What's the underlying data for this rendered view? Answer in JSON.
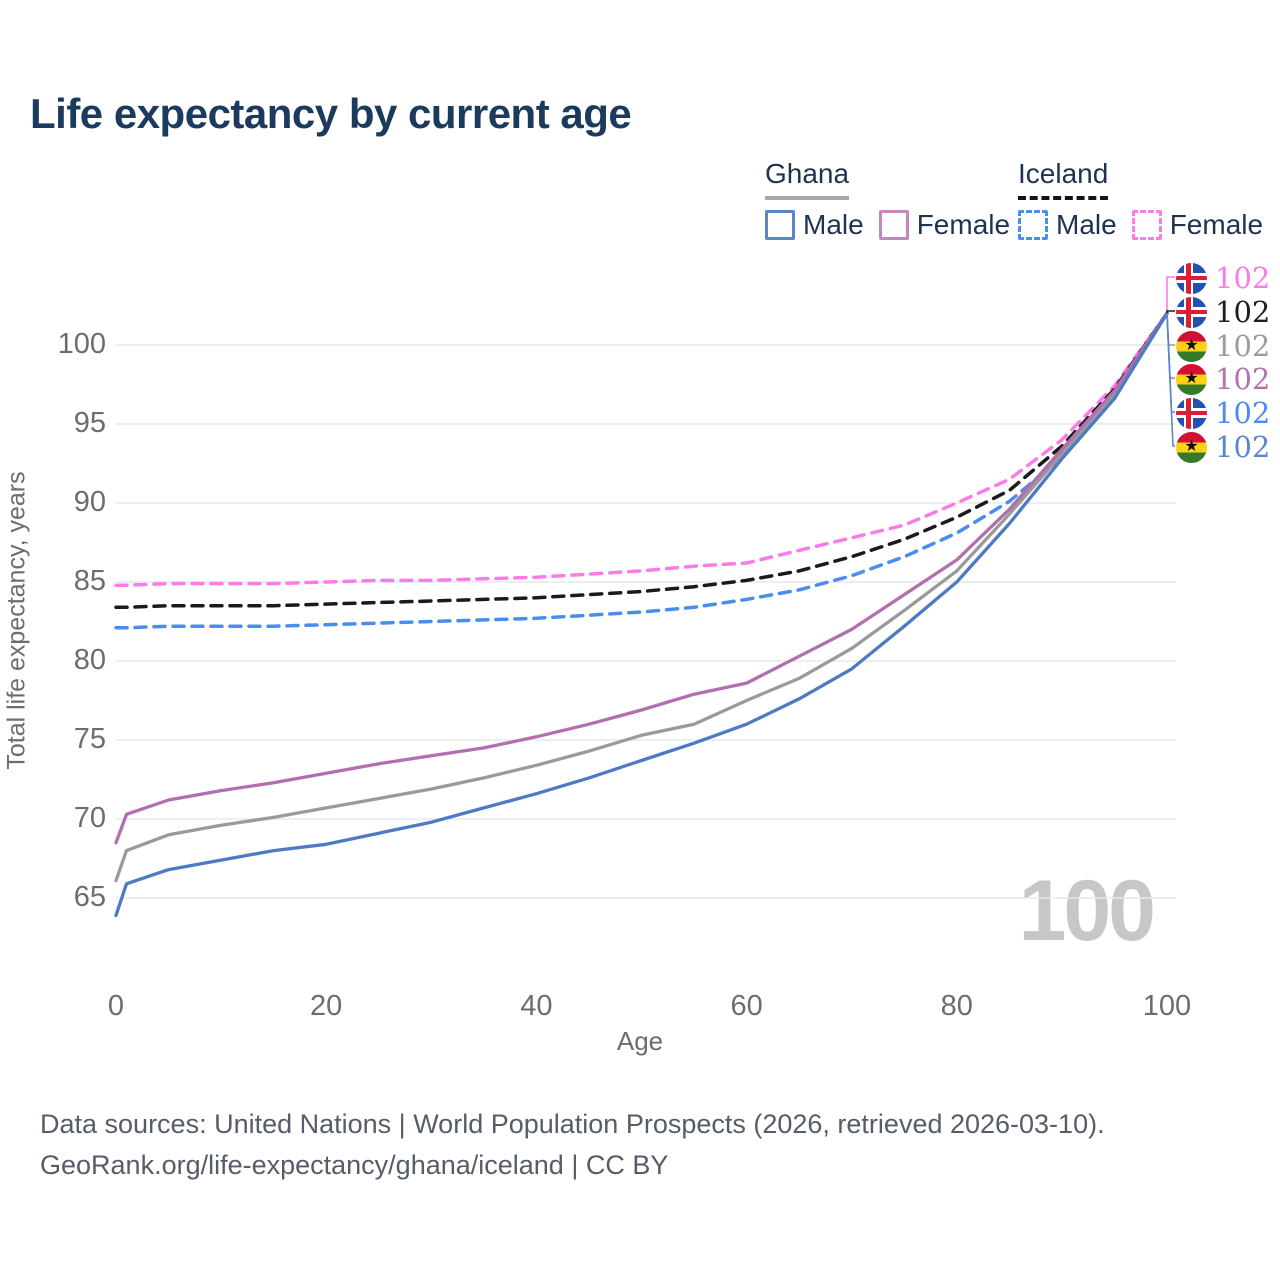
{
  "title": "Life expectancy by current age",
  "legend": {
    "groups": [
      {
        "label": "Ghana",
        "line_style": "solid",
        "items": [
          {
            "label": "Male",
            "color": "#5b86c3"
          },
          {
            "label": "Female",
            "color": "#c287bd"
          }
        ]
      },
      {
        "label": "Iceland",
        "line_style": "dashed",
        "items": [
          {
            "label": "Male",
            "color": "#4a8df0"
          },
          {
            "label": "Female",
            "color": "#fb7ce8"
          }
        ]
      }
    ]
  },
  "chart_data": {
    "type": "line",
    "title": "Life expectancy by current age",
    "xlabel": "Age",
    "ylabel": "Total life expectancy, years",
    "xlim": [
      0,
      100
    ],
    "ylim": [
      63,
      103
    ],
    "x_ticks": [
      0,
      20,
      40,
      60,
      80,
      100
    ],
    "y_ticks": [
      65,
      70,
      75,
      80,
      85,
      90,
      95,
      100
    ],
    "grid": true,
    "legend_position": "top-right",
    "x": [
      0,
      1,
      5,
      10,
      15,
      20,
      25,
      30,
      35,
      40,
      45,
      50,
      55,
      60,
      65,
      70,
      75,
      80,
      85,
      90,
      95,
      100
    ],
    "series": [
      {
        "name": "Ghana Male",
        "country": "Ghana",
        "sex": "male",
        "style": "solid",
        "color": "#4d7ac2",
        "values": [
          63.9,
          65.9,
          66.8,
          67.4,
          68.0,
          68.4,
          69.1,
          69.8,
          70.7,
          71.6,
          72.6,
          73.7,
          74.8,
          76.0,
          77.6,
          79.5,
          82.2,
          85.0,
          88.7,
          92.8,
          96.6,
          102
        ]
      },
      {
        "name": "Ghana Female",
        "country": "Ghana",
        "sex": "female",
        "style": "solid",
        "color": "#b26fb0",
        "values": [
          68.5,
          70.3,
          71.2,
          71.8,
          72.3,
          72.9,
          73.5,
          74.0,
          74.5,
          75.2,
          76.0,
          76.9,
          77.9,
          78.6,
          80.3,
          82.0,
          84.2,
          86.4,
          89.6,
          93.4,
          97.1,
          102
        ]
      },
      {
        "name": "Ghana",
        "country": "Ghana",
        "sex": "both",
        "style": "solid",
        "color": "#9a9a9a",
        "values": [
          66.1,
          68.0,
          69.0,
          69.6,
          70.1,
          70.7,
          71.3,
          71.9,
          72.6,
          73.4,
          74.3,
          75.3,
          76.0,
          77.5,
          78.9,
          80.8,
          83.2,
          85.7,
          89.3,
          93.1,
          96.9,
          102
        ]
      },
      {
        "name": "Iceland Male",
        "country": "Iceland",
        "sex": "male",
        "style": "dashed",
        "color": "#4a8df0",
        "values": [
          82.1,
          82.1,
          82.2,
          82.2,
          82.2,
          82.3,
          82.4,
          82.5,
          82.6,
          82.7,
          82.9,
          83.1,
          83.4,
          83.9,
          84.5,
          85.4,
          86.6,
          88.1,
          90.1,
          92.9,
          96.7,
          102
        ]
      },
      {
        "name": "Iceland Female",
        "country": "Iceland",
        "sex": "female",
        "style": "dashed",
        "color": "#fb7ce8",
        "values": [
          84.8,
          84.8,
          84.9,
          84.9,
          84.9,
          85.0,
          85.1,
          85.1,
          85.2,
          85.3,
          85.5,
          85.7,
          86.0,
          86.2,
          87.0,
          87.8,
          88.6,
          90.0,
          91.5,
          94.0,
          97.4,
          102
        ]
      },
      {
        "name": "Iceland",
        "country": "Iceland",
        "sex": "both",
        "style": "dashed",
        "color": "#1a1a1a",
        "values": [
          83.4,
          83.4,
          83.5,
          83.5,
          83.5,
          83.6,
          83.7,
          83.8,
          83.9,
          84.0,
          84.2,
          84.4,
          84.7,
          85.1,
          85.7,
          86.6,
          87.7,
          89.1,
          90.8,
          93.6,
          97.2,
          102
        ]
      }
    ]
  },
  "endpoint_labels": [
    {
      "series": "Iceland Female",
      "flag": "iceland",
      "value": "102",
      "color": "#fb7ce8"
    },
    {
      "series": "Iceland",
      "flag": "iceland",
      "value": "102",
      "color": "#1f1f1f"
    },
    {
      "series": "Ghana",
      "flag": "ghana",
      "value": "102",
      "color": "#9c9c9c"
    },
    {
      "series": "Ghana Female",
      "flag": "ghana",
      "value": "102",
      "color": "#b273ae"
    },
    {
      "series": "Iceland Male",
      "flag": "iceland",
      "value": "102",
      "color": "#4b8bf5"
    },
    {
      "series": "Ghana Male",
      "flag": "ghana",
      "value": "102",
      "color": "#5b86c8"
    }
  ],
  "watermark": "100",
  "footer": {
    "line1": "Data sources: United Nations | World Population Prospects (2026, retrieved 2026-03-10).",
    "line2": "GeoRank.org/life-expectancy/ghana/iceland | CC BY"
  }
}
